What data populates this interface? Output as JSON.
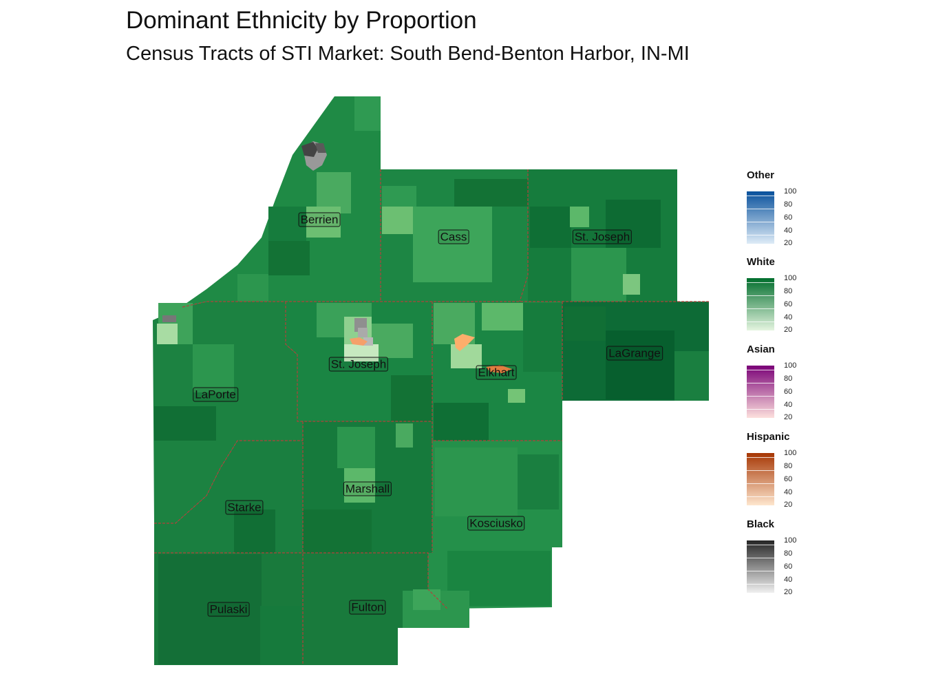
{
  "title": "Dominant Ethnicity by Proportion",
  "subtitle": "Census Tracts of STI Market: South Bend-Benton Harbor, IN-MI",
  "counties": [
    {
      "name": "Berrien"
    },
    {
      "name": "Cass"
    },
    {
      "name": "St. Joseph"
    },
    {
      "name": "St. Joseph"
    },
    {
      "name": "Elkhart"
    },
    {
      "name": "LaGrange"
    },
    {
      "name": "LaPorte"
    },
    {
      "name": "Marshall"
    },
    {
      "name": "Starke"
    },
    {
      "name": "Kosciusko"
    },
    {
      "name": "Pulaski"
    },
    {
      "name": "Fulton"
    }
  ],
  "legend": [
    {
      "title": "Other",
      "color_low": "#deebf7",
      "color_high": "#08519c",
      "ticks": [
        "100",
        "80",
        "60",
        "40",
        "20"
      ]
    },
    {
      "title": "White",
      "color_low": "#e5f5e0",
      "color_high": "#006d2c",
      "ticks": [
        "100",
        "80",
        "60",
        "40",
        "20"
      ]
    },
    {
      "title": "Asian",
      "color_low": "#fde0dd",
      "color_high": "#7a0177",
      "ticks": [
        "100",
        "80",
        "60",
        "40",
        "20"
      ]
    },
    {
      "title": "Hispanic",
      "color_low": "#fee6ce",
      "color_high": "#a63603",
      "ticks": [
        "100",
        "80",
        "60",
        "40",
        "20"
      ]
    },
    {
      "title": "Black",
      "color_low": "#f0f0f0",
      "color_high": "#252525",
      "ticks": [
        "100",
        "80",
        "60",
        "40",
        "20"
      ]
    }
  ],
  "colors": {
    "county_border": "#b2403a",
    "white_dark": "#0b6b34",
    "white_mid": "#228a45",
    "white_light": "#5cb86a",
    "hispanic": "#f5a06a",
    "black": "#444444"
  }
}
